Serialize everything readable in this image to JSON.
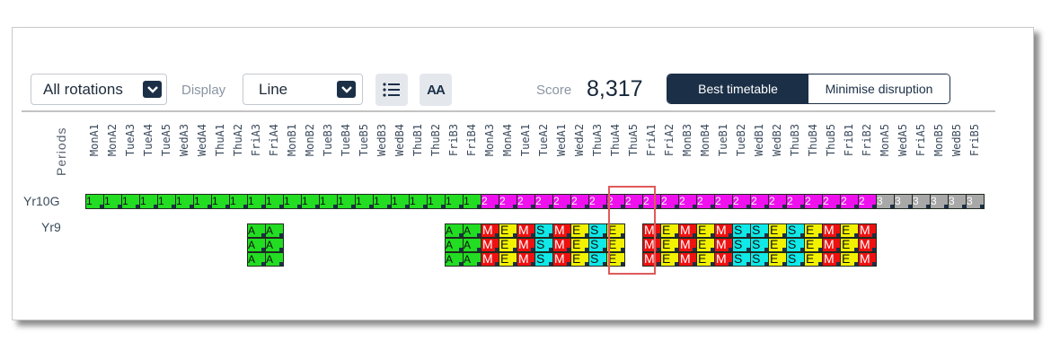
{
  "toolbar": {
    "rotation": {
      "value": "All rotations",
      "options": [
        "All rotations"
      ]
    },
    "display": {
      "label": "Display",
      "value": "Line"
    },
    "list_icon": "list-icon",
    "font_icon": "font-size-icon",
    "font_icon_text": "AA",
    "score": {
      "label": "Score",
      "value": "8,317"
    },
    "modes": {
      "best": "Best timetable",
      "minimise": "Minimise disruption",
      "selected": "best"
    }
  },
  "grid": {
    "periods_label": "Periods",
    "periods": [
      "MonA1",
      "MonA2",
      "TueA3",
      "TueA4",
      "TueA5",
      "WedA3",
      "WedA4",
      "ThuA1",
      "ThuA2",
      "FriA3",
      "FriA4",
      "MonB1",
      "MonB2",
      "TueB3",
      "TueB4",
      "TueB5",
      "WedB3",
      "WedB4",
      "ThuB1",
      "ThuB2",
      "FriB3",
      "FriB4",
      "MonA3",
      "MonA4",
      "TueA1",
      "TueA2",
      "WedA1",
      "WedA2",
      "ThuA3",
      "ThuA4",
      "ThuA5",
      "FriA1",
      "FriA2",
      "MonB3",
      "MonB4",
      "TueB1",
      "TueB2",
      "WedB1",
      "WedB2",
      "ThuB3",
      "ThuB4",
      "ThuB5",
      "FriB1",
      "FriB2",
      "MonA5",
      "WedA5",
      "FriA5",
      "MonB5",
      "WedB5",
      "FriB5"
    ],
    "rows": [
      {
        "label": "Yr10G"
      },
      {
        "label": "Yr9"
      }
    ],
    "highlight_period_index": 29,
    "colors": {
      "1": "#22dd22",
      "2": "#ee11ee",
      "3": "#a8a8a8",
      "A": "#22dd22",
      "M": "#ee1111",
      "E": "#f2f200",
      "S": "#11e8e8"
    },
    "yr10g": [
      {
        "from": 0,
        "to": 21,
        "text": "1"
      },
      {
        "from": 22,
        "to": 43,
        "text": "2"
      },
      {
        "from": 44,
        "to": 49,
        "text": "3"
      }
    ],
    "yr9_lines": [
      {
        "col": 9,
        "text": "A"
      },
      {
        "col": 10,
        "text": "A"
      },
      {
        "col": 20,
        "text": "A"
      },
      {
        "col": 21,
        "text": "A"
      },
      {
        "col": 22,
        "text": "M"
      },
      {
        "col": 23,
        "text": "E"
      },
      {
        "col": 24,
        "text": "M"
      },
      {
        "col": 25,
        "text": "S"
      },
      {
        "col": 26,
        "text": "M"
      },
      {
        "col": 27,
        "text": "E"
      },
      {
        "col": 28,
        "text": "S"
      },
      {
        "col": 29,
        "text": "E"
      },
      {
        "col": 31,
        "text": "M"
      },
      {
        "col": 32,
        "text": "E"
      },
      {
        "col": 33,
        "text": "M"
      },
      {
        "col": 34,
        "text": "E"
      },
      {
        "col": 35,
        "text": "M"
      },
      {
        "col": 36,
        "text": "S"
      },
      {
        "col": 37,
        "text": "S"
      },
      {
        "col": 38,
        "text": "E"
      },
      {
        "col": 39,
        "text": "S"
      },
      {
        "col": 40,
        "text": "E"
      },
      {
        "col": 41,
        "text": "M"
      },
      {
        "col": 42,
        "text": "E"
      },
      {
        "col": 43,
        "text": "M"
      }
    ],
    "yr9_rows": 3
  }
}
